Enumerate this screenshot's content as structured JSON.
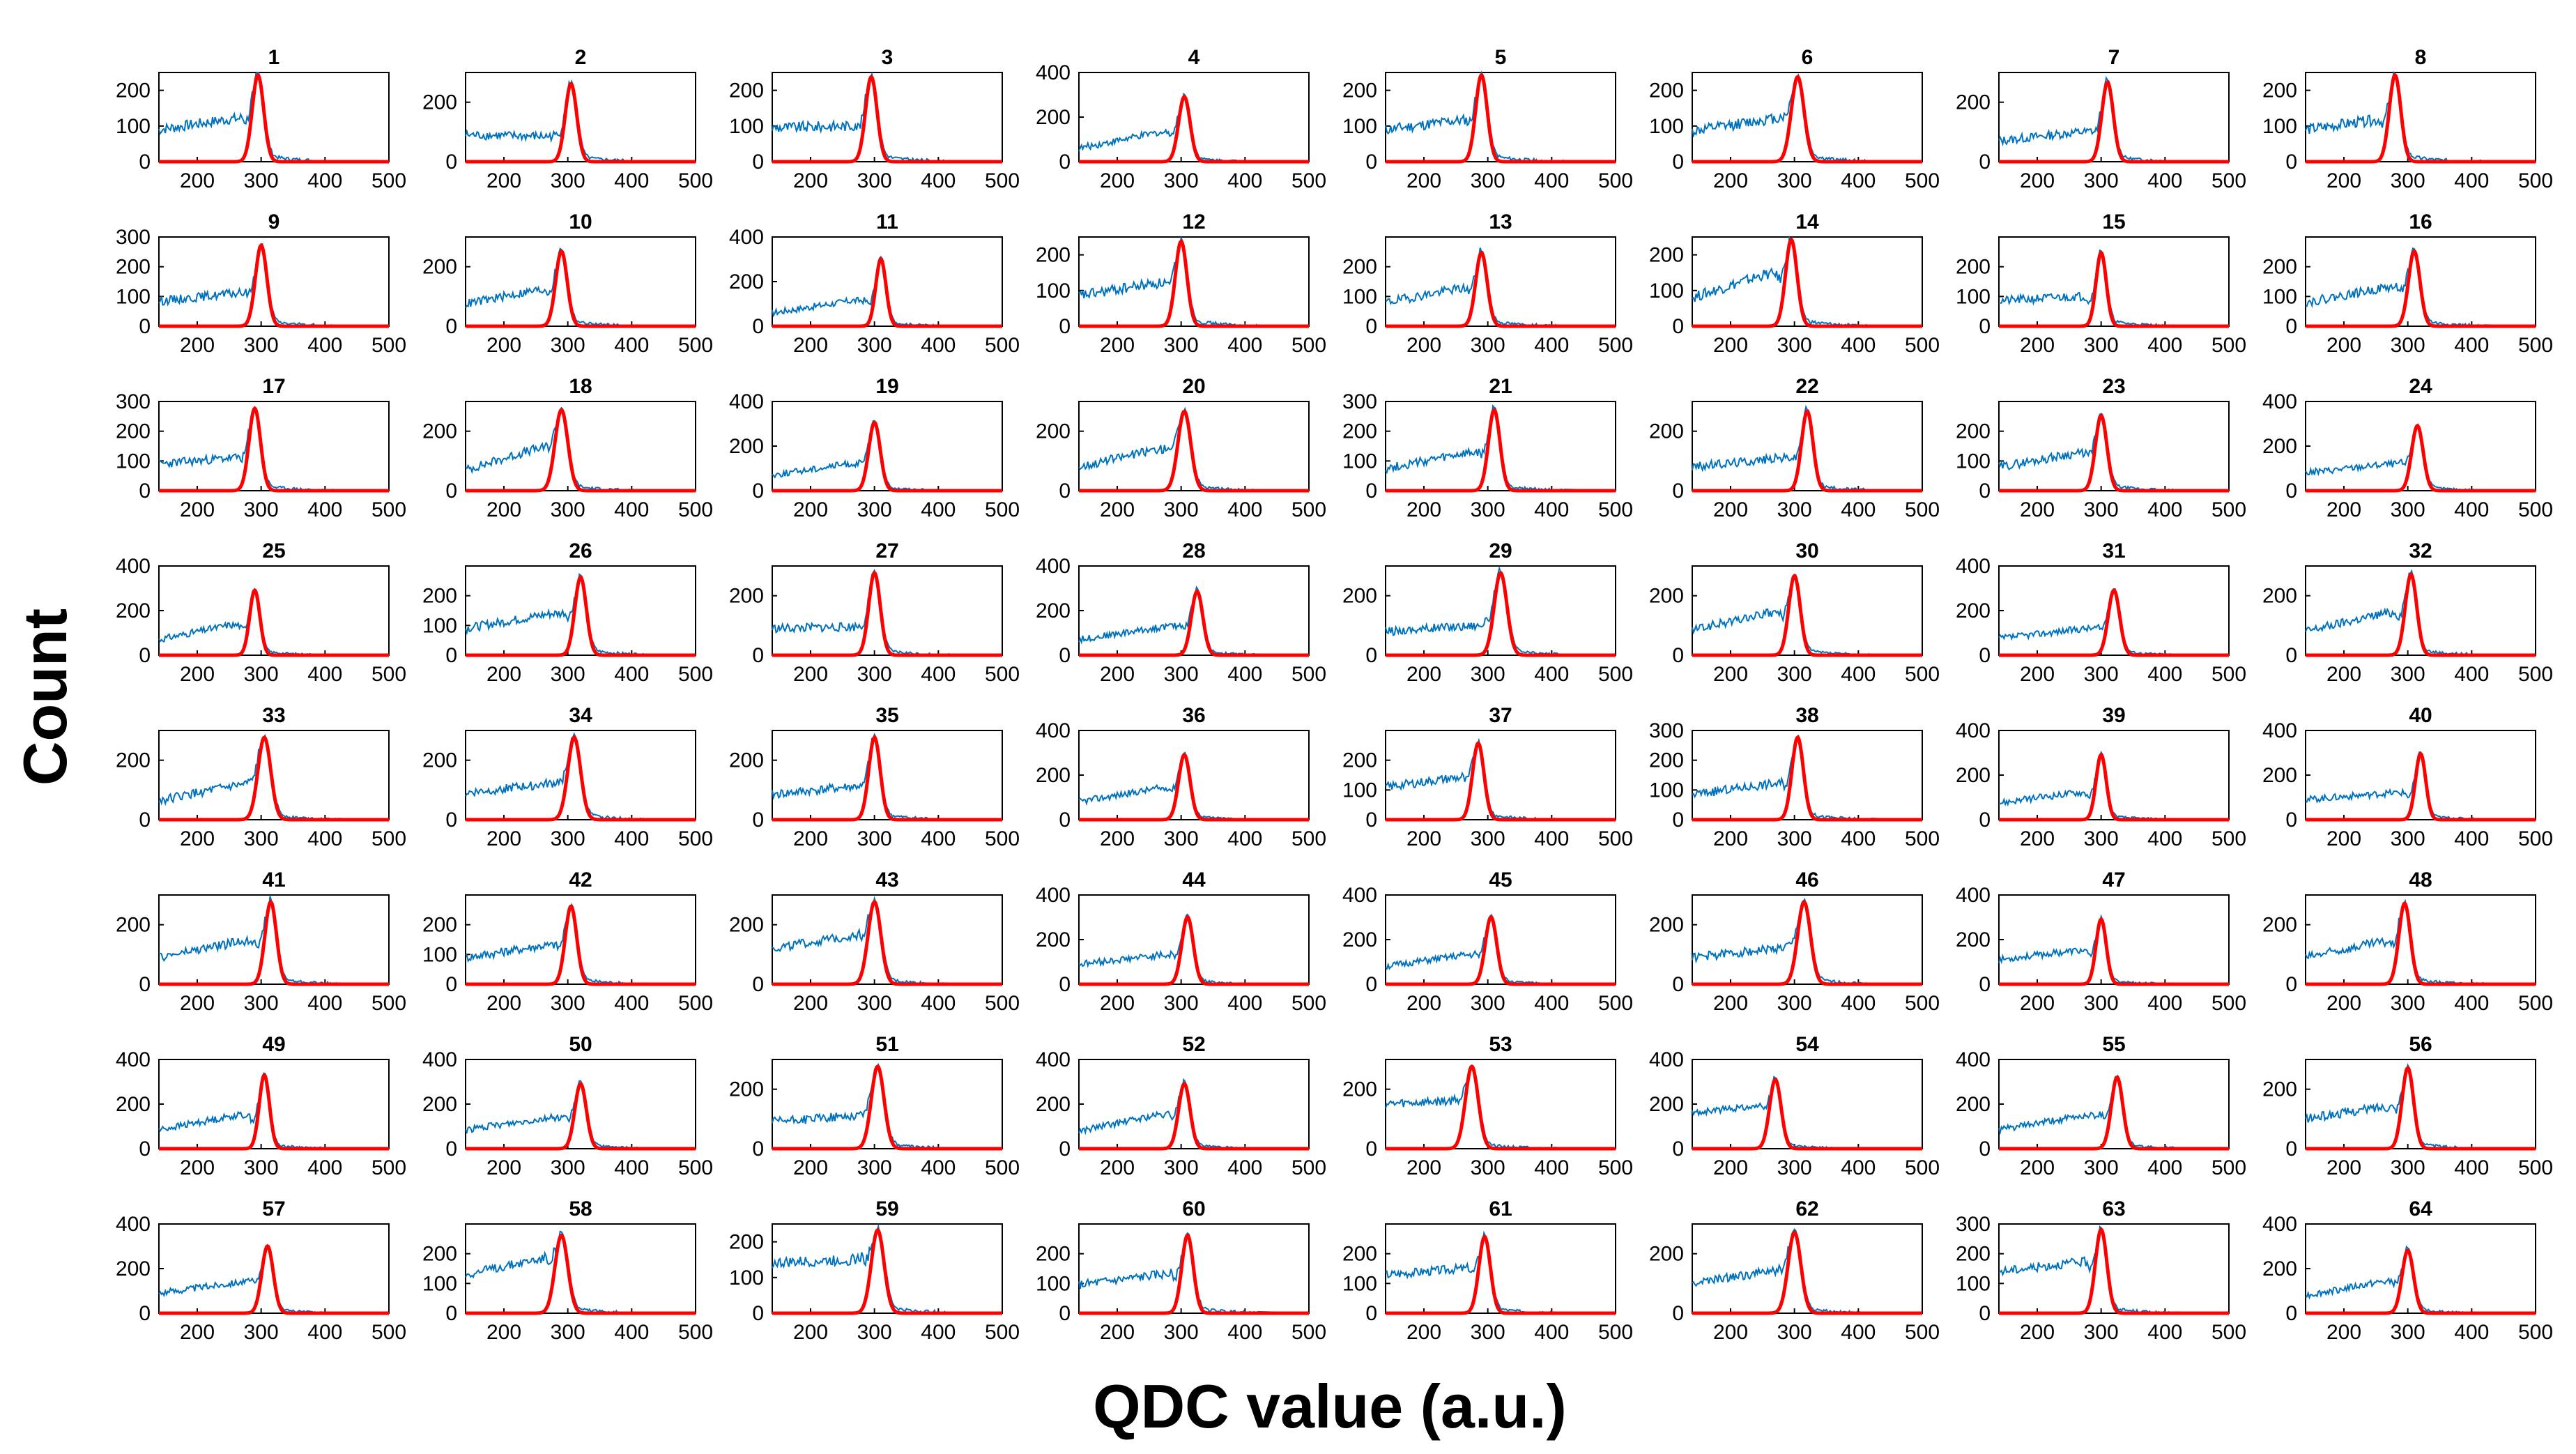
{
  "figure": {
    "xlabel": "QDC value (a.u.)",
    "ylabel": "Count",
    "colors": {
      "histogram": "#0072BD",
      "fit": "#FF0000",
      "axis": "#000000"
    }
  },
  "chart_data": {
    "type": "line",
    "layout": "8x8 grid of small multiples",
    "shared_xlabel": "QDC value (a.u.)",
    "shared_ylabel": "Count",
    "xlim": [
      140,
      500
    ],
    "xticks": [
      200,
      300,
      400,
      500
    ],
    "series_names": [
      "histogram",
      "gaussian fit"
    ],
    "panels": [
      {
        "title": "1",
        "ylim": [
          0,
          250
        ],
        "yticks": [
          0,
          100,
          200
        ],
        "peak": 295,
        "peak_count": 250,
        "sigma": 9,
        "plateau": 120,
        "plateau_start": 90
      },
      {
        "title": "2",
        "ylim": [
          0,
          300
        ],
        "yticks": [
          0,
          200
        ],
        "peak": 305,
        "peak_count": 270,
        "sigma": 9,
        "plateau": 85,
        "plateau_start": 90
      },
      {
        "title": "3",
        "ylim": [
          0,
          250
        ],
        "yticks": [
          0,
          100,
          200
        ],
        "peak": 295,
        "peak_count": 245,
        "sigma": 9,
        "plateau": 100,
        "plateau_start": 95
      },
      {
        "title": "4",
        "ylim": [
          0,
          400
        ],
        "yticks": [
          0,
          200,
          400
        ],
        "peak": 305,
        "peak_count": 300,
        "sigma": 9,
        "plateau": 130,
        "plateau_start": 60
      },
      {
        "title": "5",
        "ylim": [
          0,
          250
        ],
        "yticks": [
          0,
          100,
          200
        ],
        "peak": 290,
        "peak_count": 250,
        "sigma": 9,
        "plateau": 115,
        "plateau_start": 90
      },
      {
        "title": "6",
        "ylim": [
          0,
          250
        ],
        "yticks": [
          0,
          100,
          200
        ],
        "peak": 305,
        "peak_count": 245,
        "sigma": 10,
        "plateau": 120,
        "plateau_start": 85
      },
      {
        "title": "7",
        "ylim": [
          0,
          300
        ],
        "yticks": [
          0,
          200
        ],
        "peak": 310,
        "peak_count": 275,
        "sigma": 9,
        "plateau": 100,
        "plateau_start": 70
      },
      {
        "title": "8",
        "ylim": [
          0,
          250
        ],
        "yticks": [
          0,
          100,
          200
        ],
        "peak": 280,
        "peak_count": 250,
        "sigma": 9,
        "plateau": 115,
        "plateau_start": 90
      },
      {
        "title": "9",
        "ylim": [
          0,
          300
        ],
        "yticks": [
          0,
          100,
          200,
          300
        ],
        "peak": 300,
        "peak_count": 280,
        "sigma": 9,
        "plateau": 110,
        "plateau_start": 85
      },
      {
        "title": "10",
        "ylim": [
          0,
          300
        ],
        "yticks": [
          0,
          200
        ],
        "peak": 290,
        "peak_count": 260,
        "sigma": 9,
        "plateau": 120,
        "plateau_start": 75
      },
      {
        "title": "11",
        "ylim": [
          0,
          400
        ],
        "yticks": [
          0,
          200,
          400
        ],
        "peak": 310,
        "peak_count": 310,
        "sigma": 8,
        "plateau": 115,
        "plateau_start": 60
      },
      {
        "title": "12",
        "ylim": [
          0,
          250
        ],
        "yticks": [
          0,
          100,
          200
        ],
        "peak": 300,
        "peak_count": 245,
        "sigma": 9,
        "plateau": 120,
        "plateau_start": 85
      },
      {
        "title": "13",
        "ylim": [
          0,
          300
        ],
        "yticks": [
          0,
          100,
          200
        ],
        "peak": 290,
        "peak_count": 255,
        "sigma": 9,
        "plateau": 125,
        "plateau_start": 80
      },
      {
        "title": "14",
        "ylim": [
          0,
          250
        ],
        "yticks": [
          0,
          100,
          200
        ],
        "peak": 295,
        "peak_count": 250,
        "sigma": 9,
        "plateau": 145,
        "plateau_start": 80
      },
      {
        "title": "15",
        "ylim": [
          0,
          300
        ],
        "yticks": [
          0,
          100,
          200
        ],
        "peak": 300,
        "peak_count": 255,
        "sigma": 8,
        "plateau": 100,
        "plateau_start": 85
      },
      {
        "title": "16",
        "ylim": [
          0,
          300
        ],
        "yticks": [
          0,
          100,
          200
        ],
        "peak": 310,
        "peak_count": 260,
        "sigma": 9,
        "plateau": 130,
        "plateau_start": 80
      },
      {
        "title": "17",
        "ylim": [
          0,
          300
        ],
        "yticks": [
          0,
          100,
          200,
          300
        ],
        "peak": 290,
        "peak_count": 285,
        "sigma": 9,
        "plateau": 110,
        "plateau_start": 90
      },
      {
        "title": "18",
        "ylim": [
          0,
          300
        ],
        "yticks": [
          0,
          200
        ],
        "peak": 290,
        "peak_count": 280,
        "sigma": 10,
        "plateau": 140,
        "plateau_start": 70
      },
      {
        "title": "19",
        "ylim": [
          0,
          400
        ],
        "yticks": [
          0,
          200,
          400
        ],
        "peak": 300,
        "peak_count": 315,
        "sigma": 9,
        "plateau": 120,
        "plateau_start": 70
      },
      {
        "title": "20",
        "ylim": [
          0,
          300
        ],
        "yticks": [
          0,
          200
        ],
        "peak": 305,
        "peak_count": 275,
        "sigma": 10,
        "plateau": 140,
        "plateau_start": 80
      },
      {
        "title": "21",
        "ylim": [
          0,
          300
        ],
        "yticks": [
          0,
          100,
          200,
          300
        ],
        "peak": 310,
        "peak_count": 280,
        "sigma": 9,
        "plateau": 125,
        "plateau_start": 75
      },
      {
        "title": "22",
        "ylim": [
          0,
          300
        ],
        "yticks": [
          0,
          200
        ],
        "peak": 320,
        "peak_count": 275,
        "sigma": 9,
        "plateau": 110,
        "plateau_start": 80
      },
      {
        "title": "23",
        "ylim": [
          0,
          300
        ],
        "yticks": [
          0,
          100,
          200
        ],
        "peak": 300,
        "peak_count": 260,
        "sigma": 9,
        "plateau": 125,
        "plateau_start": 80
      },
      {
        "title": "24",
        "ylim": [
          0,
          400
        ],
        "yticks": [
          0,
          200,
          400
        ],
        "peak": 315,
        "peak_count": 300,
        "sigma": 9,
        "plateau": 120,
        "plateau_start": 80
      },
      {
        "title": "25",
        "ylim": [
          0,
          400
        ],
        "yticks": [
          0,
          200,
          400
        ],
        "peak": 290,
        "peak_count": 300,
        "sigma": 8,
        "plateau": 135,
        "plateau_start": 70
      },
      {
        "title": "26",
        "ylim": [
          0,
          300
        ],
        "yticks": [
          0,
          100,
          200
        ],
        "peak": 320,
        "peak_count": 270,
        "sigma": 9,
        "plateau": 140,
        "plateau_start": 90
      },
      {
        "title": "27",
        "ylim": [
          0,
          300
        ],
        "yticks": [
          0,
          200
        ],
        "peak": 300,
        "peak_count": 285,
        "sigma": 9,
        "plateau": 95,
        "plateau_start": 90
      },
      {
        "title": "28",
        "ylim": [
          0,
          400
        ],
        "yticks": [
          0,
          200,
          400
        ],
        "peak": 325,
        "peak_count": 295,
        "sigma": 9,
        "plateau": 130,
        "plateau_start": 70
      },
      {
        "title": "29",
        "ylim": [
          0,
          300
        ],
        "yticks": [
          0,
          200
        ],
        "peak": 320,
        "peak_count": 285,
        "sigma": 10,
        "plateau": 100,
        "plateau_start": 80
      },
      {
        "title": "30",
        "ylim": [
          0,
          300
        ],
        "yticks": [
          0,
          200
        ],
        "peak": 300,
        "peak_count": 275,
        "sigma": 9,
        "plateau": 140,
        "plateau_start": 85
      },
      {
        "title": "31",
        "ylim": [
          0,
          400
        ],
        "yticks": [
          0,
          200,
          400
        ],
        "peak": 320,
        "peak_count": 300,
        "sigma": 9,
        "plateau": 120,
        "plateau_start": 75
      },
      {
        "title": "32",
        "ylim": [
          0,
          300
        ],
        "yticks": [
          0,
          200
        ],
        "peak": 305,
        "peak_count": 280,
        "sigma": 9,
        "plateau": 140,
        "plateau_start": 80
      },
      {
        "title": "33",
        "ylim": [
          0,
          300
        ],
        "yticks": [
          0,
          200
        ],
        "peak": 305,
        "peak_count": 285,
        "sigma": 10,
        "plateau": 115,
        "plateau_start": 65
      },
      {
        "title": "34",
        "ylim": [
          0,
          300
        ],
        "yticks": [
          0,
          200
        ],
        "peak": 310,
        "peak_count": 285,
        "sigma": 10,
        "plateau": 120,
        "plateau_start": 90
      },
      {
        "title": "35",
        "ylim": [
          0,
          300
        ],
        "yticks": [
          0,
          200
        ],
        "peak": 300,
        "peak_count": 285,
        "sigma": 9,
        "plateau": 110,
        "plateau_start": 85
      },
      {
        "title": "36",
        "ylim": [
          0,
          400
        ],
        "yticks": [
          0,
          200,
          400
        ],
        "peak": 305,
        "peak_count": 300,
        "sigma": 9,
        "plateau": 140,
        "plateau_start": 80
      },
      {
        "title": "37",
        "ylim": [
          0,
          300
        ],
        "yticks": [
          0,
          100,
          200
        ],
        "peak": 285,
        "peak_count": 265,
        "sigma": 9,
        "plateau": 140,
        "plateau_start": 110
      },
      {
        "title": "38",
        "ylim": [
          0,
          300
        ],
        "yticks": [
          0,
          100,
          200,
          300
        ],
        "peak": 305,
        "peak_count": 285,
        "sigma": 9,
        "plateau": 120,
        "plateau_start": 85
      },
      {
        "title": "39",
        "ylim": [
          0,
          400
        ],
        "yticks": [
          0,
          200,
          400
        ],
        "peak": 300,
        "peak_count": 300,
        "sigma": 8,
        "plateau": 120,
        "plateau_start": 75
      },
      {
        "title": "40",
        "ylim": [
          0,
          400
        ],
        "yticks": [
          0,
          200,
          400
        ],
        "peak": 320,
        "peak_count": 305,
        "sigma": 8,
        "plateau": 120,
        "plateau_start": 90
      },
      {
        "title": "41",
        "ylim": [
          0,
          300
        ],
        "yticks": [
          0,
          200
        ],
        "peak": 315,
        "peak_count": 285,
        "sigma": 9,
        "plateau": 145,
        "plateau_start": 90
      },
      {
        "title": "42",
        "ylim": [
          0,
          300
        ],
        "yticks": [
          0,
          100,
          200
        ],
        "peak": 305,
        "peak_count": 270,
        "sigma": 9,
        "plateau": 130,
        "plateau_start": 90
      },
      {
        "title": "43",
        "ylim": [
          0,
          300
        ],
        "yticks": [
          0,
          200
        ],
        "peak": 300,
        "peak_count": 285,
        "sigma": 10,
        "plateau": 160,
        "plateau_start": 120
      },
      {
        "title": "44",
        "ylim": [
          0,
          400
        ],
        "yticks": [
          0,
          200,
          400
        ],
        "peak": 310,
        "peak_count": 310,
        "sigma": 9,
        "plateau": 130,
        "plateau_start": 90
      },
      {
        "title": "45",
        "ylim": [
          0,
          400
        ],
        "yticks": [
          0,
          200,
          400
        ],
        "peak": 305,
        "peak_count": 310,
        "sigma": 9,
        "plateau": 130,
        "plateau_start": 80
      },
      {
        "title": "46",
        "ylim": [
          0,
          300
        ],
        "yticks": [
          0,
          200
        ],
        "peak": 315,
        "peak_count": 285,
        "sigma": 10,
        "plateau": 120,
        "plateau_start": 90
      },
      {
        "title": "47",
        "ylim": [
          0,
          400
        ],
        "yticks": [
          0,
          200,
          400
        ],
        "peak": 300,
        "peak_count": 300,
        "sigma": 8,
        "plateau": 150,
        "plateau_start": 110
      },
      {
        "title": "48",
        "ylim": [
          0,
          300
        ],
        "yticks": [
          0,
          200
        ],
        "peak": 295,
        "peak_count": 280,
        "sigma": 9,
        "plateau": 140,
        "plateau_start": 90
      },
      {
        "title": "49",
        "ylim": [
          0,
          400
        ],
        "yticks": [
          0,
          200,
          400
        ],
        "peak": 305,
        "peak_count": 340,
        "sigma": 8,
        "plateau": 150,
        "plateau_start": 85
      },
      {
        "title": "50",
        "ylim": [
          0,
          400
        ],
        "yticks": [
          0,
          200,
          400
        ],
        "peak": 320,
        "peak_count": 300,
        "sigma": 9,
        "plateau": 140,
        "plateau_start": 85
      },
      {
        "title": "51",
        "ylim": [
          0,
          300
        ],
        "yticks": [
          0,
          200
        ],
        "peak": 305,
        "peak_count": 285,
        "sigma": 10,
        "plateau": 110,
        "plateau_start": 90
      },
      {
        "title": "52",
        "ylim": [
          0,
          400
        ],
        "yticks": [
          0,
          200,
          400
        ],
        "peak": 305,
        "peak_count": 300,
        "sigma": 9,
        "plateau": 150,
        "plateau_start": 80
      },
      {
        "title": "53",
        "ylim": [
          0,
          300
        ],
        "yticks": [
          0,
          200
        ],
        "peak": 275,
        "peak_count": 285,
        "sigma": 10,
        "plateau": 160,
        "plateau_start": 150
      },
      {
        "title": "54",
        "ylim": [
          0,
          400
        ],
        "yticks": [
          0,
          200,
          400
        ],
        "peak": 270,
        "peak_count": 320,
        "sigma": 9,
        "plateau": 190,
        "plateau_start": 160
      },
      {
        "title": "55",
        "ylim": [
          0,
          400
        ],
        "yticks": [
          0,
          200,
          400
        ],
        "peak": 325,
        "peak_count": 330,
        "sigma": 9,
        "plateau": 150,
        "plateau_start": 85
      },
      {
        "title": "56",
        "ylim": [
          0,
          300
        ],
        "yticks": [
          0,
          200
        ],
        "peak": 300,
        "peak_count": 280,
        "sigma": 9,
        "plateau": 140,
        "plateau_start": 100
      },
      {
        "title": "57",
        "ylim": [
          0,
          400
        ],
        "yticks": [
          0,
          200,
          400
        ],
        "peak": 310,
        "peak_count": 310,
        "sigma": 9,
        "plateau": 140,
        "plateau_start": 90
      },
      {
        "title": "58",
        "ylim": [
          0,
          300
        ],
        "yticks": [
          0,
          100,
          200
        ],
        "peak": 290,
        "peak_count": 270,
        "sigma": 10,
        "plateau": 180,
        "plateau_start": 130
      },
      {
        "title": "59",
        "ylim": [
          0,
          250
        ],
        "yticks": [
          0,
          100,
          200
        ],
        "peak": 305,
        "peak_count": 240,
        "sigma": 10,
        "plateau": 150,
        "plateau_start": 140
      },
      {
        "title": "60",
        "ylim": [
          0,
          300
        ],
        "yticks": [
          0,
          100,
          200
        ],
        "peak": 310,
        "peak_count": 270,
        "sigma": 9,
        "plateau": 130,
        "plateau_start": 95
      },
      {
        "title": "61",
        "ylim": [
          0,
          300
        ],
        "yticks": [
          0,
          100,
          200
        ],
        "peak": 295,
        "peak_count": 265,
        "sigma": 9,
        "plateau": 150,
        "plateau_start": 130
      },
      {
        "title": "62",
        "ylim": [
          0,
          300
        ],
        "yticks": [
          0,
          200
        ],
        "peak": 300,
        "peak_count": 280,
        "sigma": 10,
        "plateau": 140,
        "plateau_start": 100
      },
      {
        "title": "63",
        "ylim": [
          0,
          300
        ],
        "yticks": [
          0,
          100,
          200,
          300
        ],
        "peak": 300,
        "peak_count": 290,
        "sigma": 9,
        "plateau": 170,
        "plateau_start": 140
      },
      {
        "title": "64",
        "ylim": [
          0,
          400
        ],
        "yticks": [
          0,
          200,
          400
        ],
        "peak": 300,
        "peak_count": 290,
        "sigma": 9,
        "plateau": 140,
        "plateau_start": 80
      }
    ]
  }
}
